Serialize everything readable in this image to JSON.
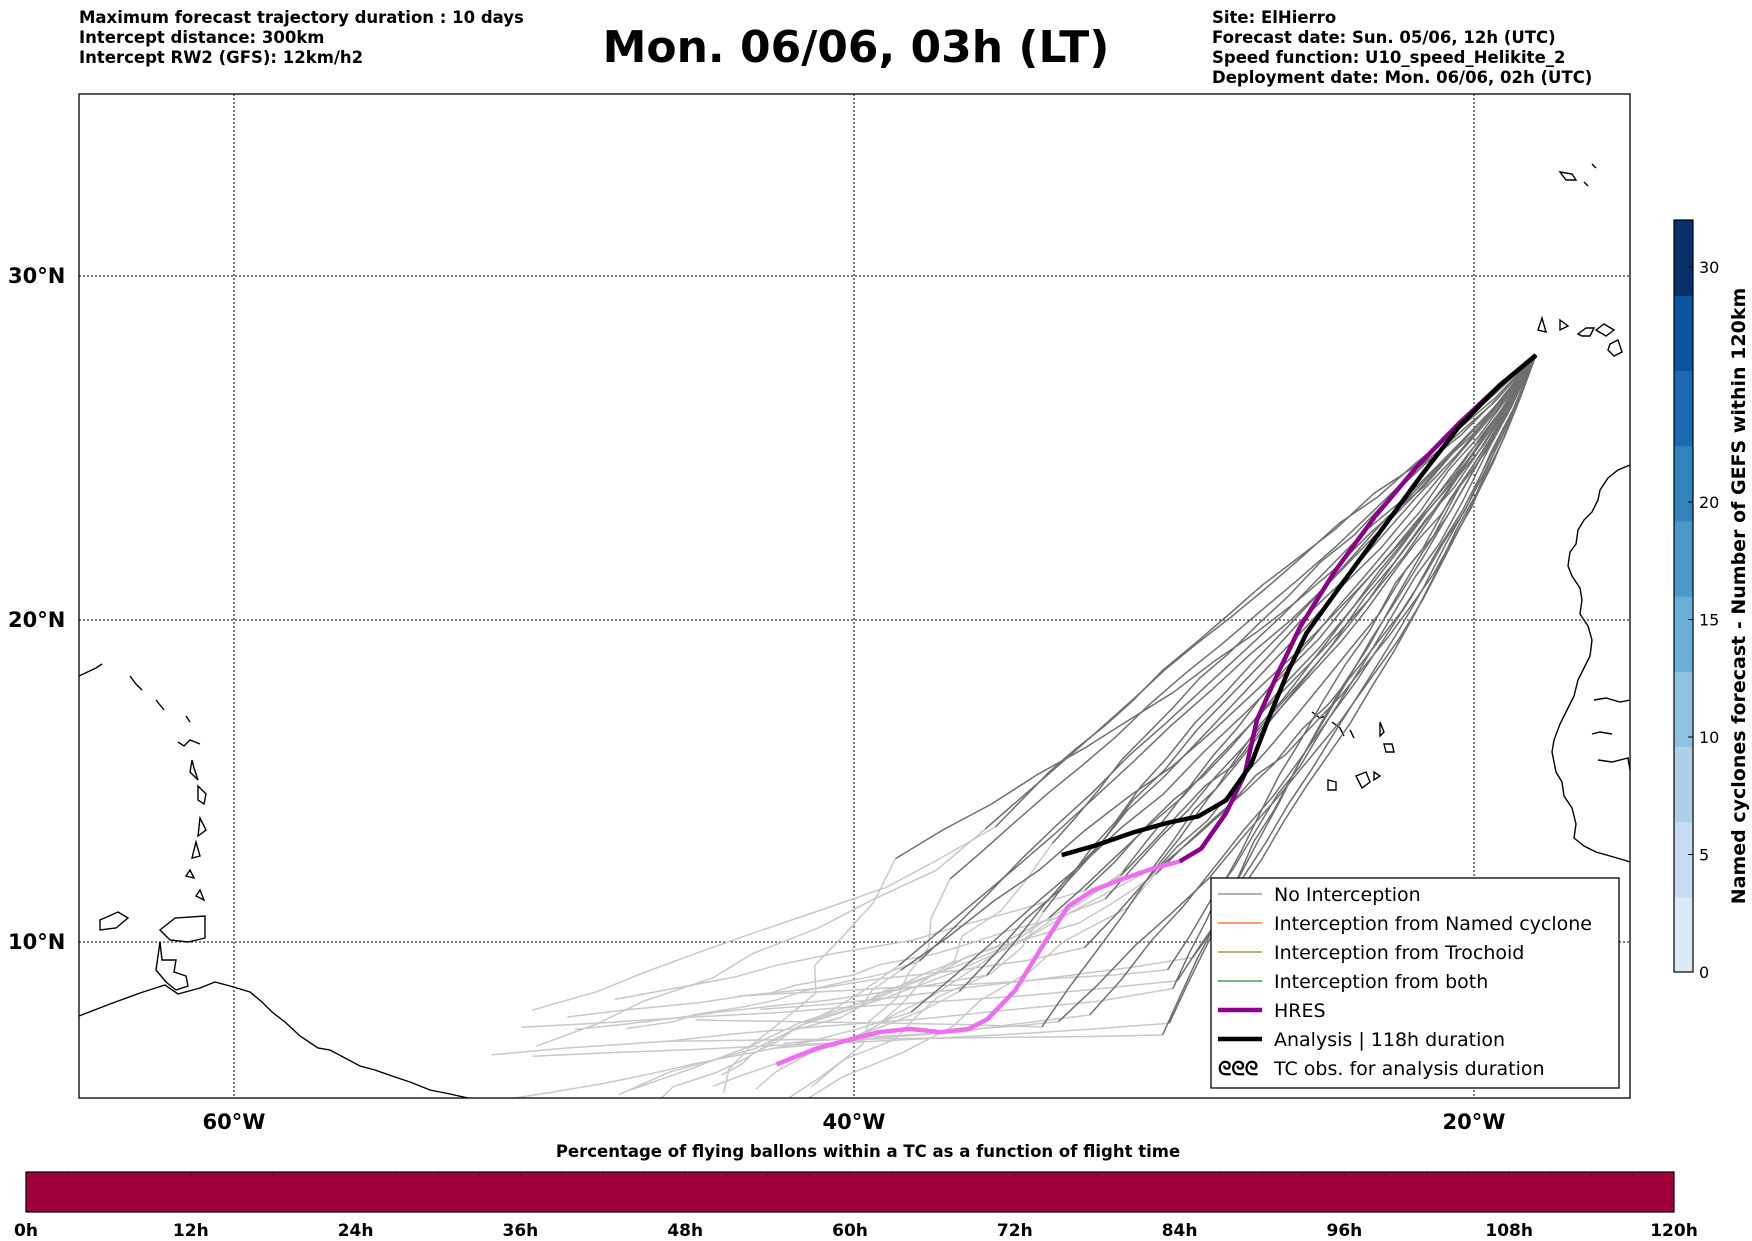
{
  "header": {
    "left_lines": [
      "Maximum forecast trajectory duration : 10 days",
      "Intercept distance: 300km",
      "Intercept RW2 (GFS):  12km/h2"
    ],
    "title": "Mon. 06/06, 03h (LT)",
    "right_lines": [
      "Site: ElHierro",
      "Forecast date: Sun. 05/06, 12h (UTC)",
      "Speed function: U10_speed_Helikite_2",
      "Deployment date: Mon. 06/06, 02h (UTC)"
    ]
  },
  "map": {
    "lon_range": [
      -65,
      -15
    ],
    "lat_range": [
      5.4,
      34.7
    ],
    "lat_labels": [
      {
        "lat": 30,
        "label": "30°N"
      },
      {
        "lat": 20,
        "label": "20°N"
      },
      {
        "lat": 10,
        "label": "10°N"
      }
    ],
    "lon_labels": [
      {
        "lon": -60,
        "label": "60°W"
      },
      {
        "lon": -40,
        "label": "40°W"
      },
      {
        "lon": -20,
        "label": "20°W"
      }
    ],
    "site": {
      "name": "ElHierro",
      "lon": -18.0,
      "lat": 27.7
    }
  },
  "legend": {
    "items": [
      {
        "label": "No Interception",
        "color": "#808080",
        "style": "line"
      },
      {
        "label": "Interception from Named cyclone",
        "color": "#ff5a1f",
        "style": "line"
      },
      {
        "label": "Interception from Trochoid",
        "color": "#8b8b2a",
        "style": "line"
      },
      {
        "label": "Interception from both",
        "color": "#2e8b2e",
        "style": "line"
      },
      {
        "label": "HRES",
        "color": "#8b008b",
        "style": "thick"
      },
      {
        "label": "Analysis | 118h duration",
        "color": "#000000",
        "style": "thick"
      },
      {
        "label": "TC obs. for analysis duration",
        "color": "#000000",
        "style": "symbol",
        "symbol": "ᘓᘓᘓ"
      }
    ]
  },
  "colorbar": {
    "label": "Named cyclones forecast - Number of GEFS within 120km",
    "min": 0,
    "max": 32,
    "ticks": [
      0,
      5,
      10,
      15,
      20,
      30
    ],
    "colors": [
      "#dce9f6",
      "#c6dbef",
      "#aecfe6",
      "#8fc1e0",
      "#6aaed6",
      "#4a98c9",
      "#3282bd",
      "#1c6bb0",
      "#0b559f",
      "#08306b"
    ]
  },
  "progress_bar": {
    "title": "Percentage of flying ballons within a TC as a function of flight time",
    "color": "#a0003c",
    "tick_labels": [
      "0h",
      "12h",
      "24h",
      "36h",
      "48h",
      "60h",
      "72h",
      "84h",
      "96h",
      "108h",
      "120h"
    ],
    "max_hours": 120
  },
  "chart_data": {
    "type": "line",
    "title": "Mon. 06/06, 03h (LT)",
    "xlabel": "",
    "ylabel": "",
    "series": [
      {
        "name": "HRES",
        "color": "#8b008b",
        "lon": [
          -18.0,
          -19.2,
          -20.5,
          -21.8,
          -23.2,
          -24.5,
          -25.6,
          -26.3,
          -27.0,
          -27.4,
          -28.0,
          -28.8,
          -29.5,
          -30.3,
          -31.5,
          -32.3,
          -33.1,
          -33.9,
          -34.8,
          -35.7,
          -36.3,
          -37.2,
          -38.2,
          -39.2,
          -40.0,
          -41.2,
          -42.5
        ],
        "lat": [
          27.7,
          26.8,
          25.7,
          24.5,
          23.0,
          21.4,
          19.8,
          18.4,
          16.9,
          15.2,
          14.0,
          12.9,
          12.5,
          12.3,
          11.9,
          11.6,
          11.1,
          9.9,
          8.5,
          7.6,
          7.3,
          7.2,
          7.3,
          7.2,
          7.0,
          6.7,
          6.2
        ]
      },
      {
        "name": "Analysis | 118h duration",
        "lon": [
          -18.0,
          -19.2,
          -20.5,
          -21.7,
          -23.0,
          -24.3,
          -25.4,
          -26.0,
          -26.6,
          -27.2,
          -28.0,
          -28.9,
          -29.9,
          -31.0,
          -32.2,
          -33.3
        ],
        "lat": [
          27.7,
          26.8,
          25.6,
          24.2,
          22.6,
          21.0,
          19.6,
          18.4,
          17.0,
          15.5,
          14.4,
          13.9,
          13.7,
          13.4,
          13.0,
          12.7
        ]
      }
    ]
  }
}
